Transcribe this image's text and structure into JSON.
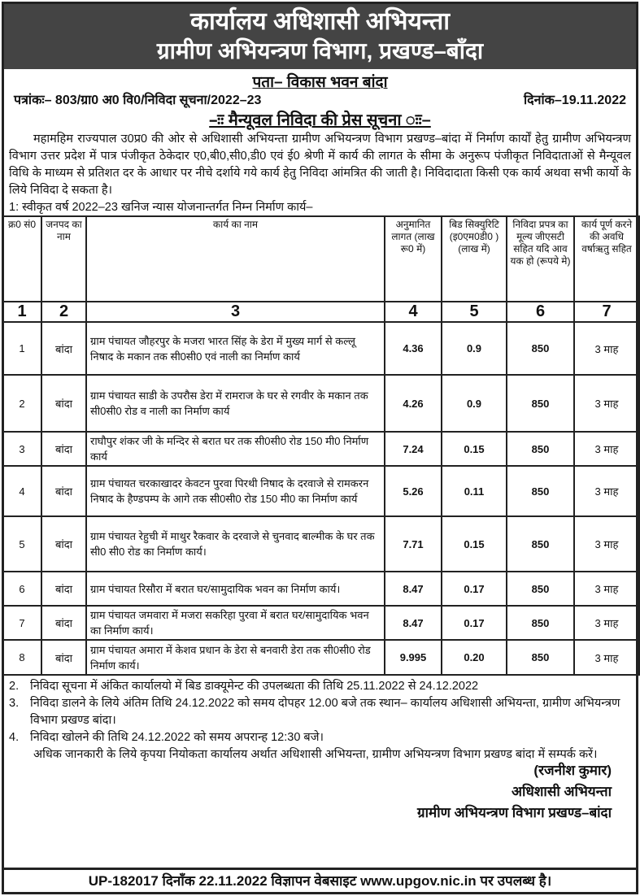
{
  "header": {
    "title": "कार्यालय अधिशासी अभियन्ता",
    "subtitle": "ग्रामीण अभियन्त्रण विभाग, प्रखण्ड–बाँदा"
  },
  "address": "पता– विकास भवन बांदा",
  "ref_no": "पत्रांकः– 803/ग्रा0 अ0 वि0/निविदा सूचना/2022–23",
  "date": "दिनांक–19.11.2022",
  "notice_title": "–ःः मैन्यूवल निविदा की प्रेस सूचना ःः–",
  "intro": "महामहिम राज्यपाल उ0प्र0 की ओर से अधिशासी अभियन्ता ग्रामीण अभियन्त्रण विभाग प्रखण्ड–बांदा में निर्माण कार्यों हेतु ग्रामीण अभियन्त्रण विभाग उत्तर प्रदेश में पात्र पंजीकृत ठेकेदार ए0,बी0,सी0,डी0 एवं ई0 श्रेणी में कार्य की लागत के सीमा के अनुरूप पंजीकृत निविदाताओं से मैन्यूवल विधि के माध्यम से प्रतिशत दर के आधार पर नीचे दर्शाये गये कार्य हेतु निविदा आंमत्रित की जाती है। निविदादाता किसी एक कार्य अथवा सभी कार्यो के लिये निविदा दे सकता है।",
  "item1": "1:   स्वीकृत वर्ष 2022–23 खनिज न्यास योजनान्तर्गत निम्न निर्माण कार्य–",
  "table": {
    "headers": [
      "क्र0 सं0",
      "जनपद का नाम",
      "कार्य का नाम",
      "अनुमानित लागत (लाख रू0 में)",
      "बिड सिक्युरिटि (इ0एम0डी0 ) (लाख में)",
      "निविदा प्रपत्र का मूल्य जीएसटी सहित यदि आव यक हो (रूपये मे)",
      "कार्य पूर्ण करने की अवधि वर्षाऋतु सहित"
    ],
    "col_numbers": [
      "1",
      "2",
      "3",
      "4",
      "5",
      "6",
      "7"
    ],
    "rows": [
      [
        "1",
        "बांदा",
        "ग्राम पंचायत जौहरपुर के मजरा भारत सिंह के डेरा में मुख्य मार्ग से कल्लू निषाद के मकान तक सी0सी0 एवं नाली का निर्माण कार्य",
        "4.36",
        "0.9",
        "850",
        "3 माह"
      ],
      [
        "2",
        "बांदा",
        "ग्राम पंचायत साडी के उपरौस डेरा में रामराज के घर से रगवीर के मकान तक सी0सी0 रोड व नाली का निर्माण कार्य",
        "4.26",
        "0.9",
        "850",
        "3 माह"
      ],
      [
        "3",
        "बांदा",
        "राघौपुर शंकर जी के मन्दिर से बरात घर तक सी0सी0 रोड 150 मी0 निर्माण कार्य",
        "7.24",
        "0.15",
        "850",
        "3 माह"
      ],
      [
        "4",
        "बांदा",
        "ग्राम पंचायत चरकाखादर केवटन पुरवा पिरथी निषाद के दरवाजे से रामकरन निषाद के हैण्डपम्प के आगे तक सी0सी0 रोड 150 मी0 का निर्माण कार्य",
        "5.26",
        "0.11",
        "850",
        "3 माह"
      ],
      [
        "5",
        "बांदा",
        "ग्राम पंचायत रेहुची में माथुर रैकवार के दरवाजे से चुनवाद बाल्मीक के घर तक सी0 सी0 रोड का निर्माण कार्य।",
        "7.71",
        "0.15",
        "850",
        "3 माह"
      ],
      [
        "6",
        "बांदा",
        "ग्राम पंचायत रिसौरा में बरात घर/सामुदायिक भवन का निर्माण कार्य।",
        "8.47",
        "0.17",
        "850",
        "3 माह"
      ],
      [
        "7",
        "बांदा",
        "ग्राम पंचायत जमवारा में मजरा सकरिहा पुरवा में बरात घर/सामुदायिक भवन का निर्माण कार्य।",
        "8.47",
        "0.17",
        "850",
        "3 माह"
      ],
      [
        "8",
        "बांदा",
        "ग्राम पंचायत अमारा में केशव प्रधान के डेरा से बनवारी डेरा तक सी0सी0 रोड निर्माण कार्य।",
        "9.995",
        "0.20",
        "850",
        "3 माह"
      ]
    ]
  },
  "notes": [
    {
      "num": "2.",
      "text": "निविदा सूचना में अंकित कार्यालयो में बिड डाक्यूमेन्ट की उपलब्धता की तिथि 25.11.2022 से 24.12.2022"
    },
    {
      "num": "3.",
      "text": "निविदा डालने के लिये अंतिम तिथि 24.12.2022 को समय दोपहर 12.00 बजे तक स्थान– कार्यालय अधिशासी अभियन्ता, ग्रामीण अभियन्त्रण विभाग प्रखण्ड बांदा।"
    },
    {
      "num": "4.",
      "text": "निविदा खोलने की तिथि 24.12.2022 को समय अपरान्ह 12:30 बजे।"
    }
  ],
  "contact": "अधिक जानकारी के लिये कृपया नियोकता कार्यालय अर्थात अधिशासी अभियन्ता, ग्रामीण अभियन्त्रण विभाग प्रखण्ड बांदा में सम्पर्क करें।",
  "signature": {
    "name": "(रजनीश कुमार)",
    "designation": "अधिशासी अभियन्ता",
    "office": "ग्रामीण अभियन्त्रण विभाग प्रखण्ड–बांदा"
  },
  "footer": "UP-182017 दिनाँक 22.11.2022 विज्ञापन वेबसाइट www.upgov.nic.in पर उपलब्ध है।"
}
